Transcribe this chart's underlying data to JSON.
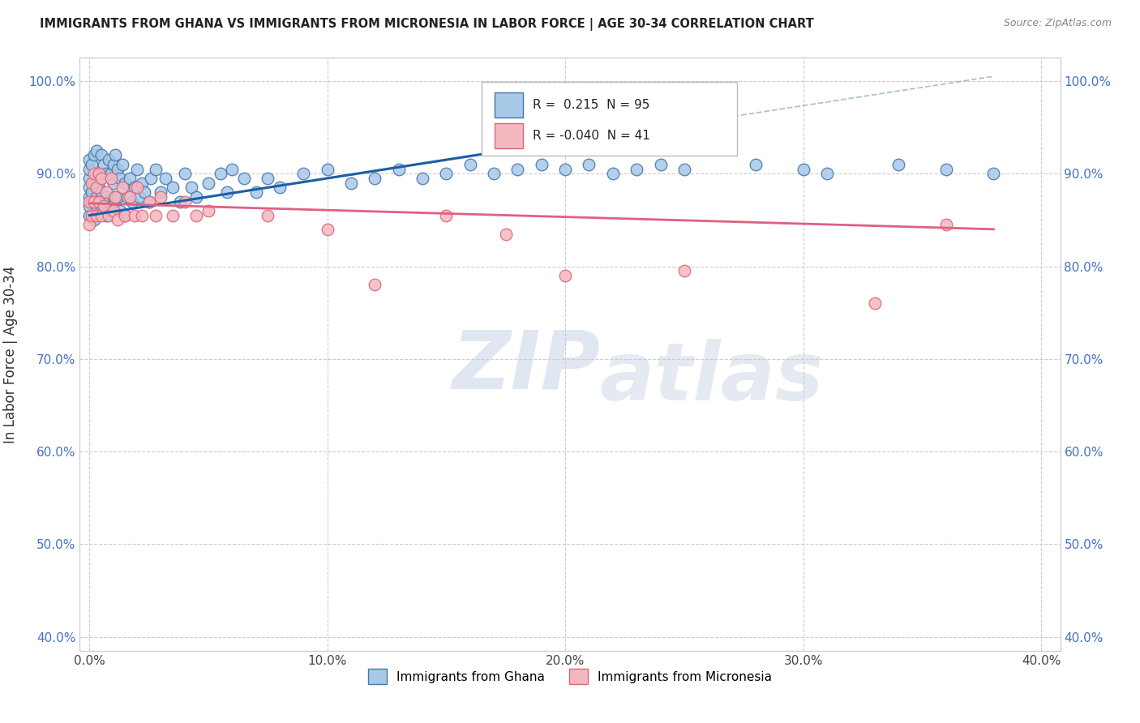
{
  "title": "IMMIGRANTS FROM GHANA VS IMMIGRANTS FROM MICRONESIA IN LABOR FORCE | AGE 30-34 CORRELATION CHART",
  "source": "Source: ZipAtlas.com",
  "ylabel": "In Labor Force | Age 30-34",
  "xlim": [
    -0.004,
    0.408
  ],
  "ylim": [
    0.385,
    1.025
  ],
  "ytick_labels": [
    "40.0%",
    "50.0%",
    "60.0%",
    "70.0%",
    "80.0%",
    "90.0%",
    "100.0%"
  ],
  "ytick_values": [
    0.4,
    0.5,
    0.6,
    0.7,
    0.8,
    0.9,
    1.0
  ],
  "xtick_labels": [
    "0.0%",
    "10.0%",
    "20.0%",
    "30.0%",
    "40.0%"
  ],
  "xtick_values": [
    0.0,
    0.1,
    0.2,
    0.3,
    0.4
  ],
  "ghana_color": "#a8c8e8",
  "micronesia_color": "#f4b8c0",
  "ghana_edge_color": "#4477aa",
  "micronesia_edge_color": "#dd6677",
  "ghana_R": 0.215,
  "ghana_N": 95,
  "micronesia_R": -0.04,
  "micronesia_N": 41,
  "ghana_line_color": "#1a5fa8",
  "micronesia_line_color": "#e06080",
  "ghana_x": [
    0.0,
    0.0,
    0.0,
    0.0,
    0.0,
    0.0,
    0.0,
    0.001,
    0.001,
    0.001,
    0.002,
    0.002,
    0.002,
    0.002,
    0.003,
    0.003,
    0.003,
    0.003,
    0.004,
    0.004,
    0.004,
    0.005,
    0.005,
    0.005,
    0.005,
    0.006,
    0.006,
    0.007,
    0.007,
    0.007,
    0.008,
    0.008,
    0.009,
    0.009,
    0.01,
    0.01,
    0.01,
    0.011,
    0.011,
    0.012,
    0.012,
    0.013,
    0.013,
    0.014,
    0.015,
    0.015,
    0.016,
    0.017,
    0.018,
    0.019,
    0.02,
    0.021,
    0.022,
    0.023,
    0.025,
    0.026,
    0.028,
    0.03,
    0.032,
    0.035,
    0.038,
    0.04,
    0.043,
    0.045,
    0.05,
    0.055,
    0.058,
    0.06,
    0.065,
    0.07,
    0.075,
    0.08,
    0.09,
    0.1,
    0.11,
    0.12,
    0.13,
    0.14,
    0.15,
    0.16,
    0.17,
    0.18,
    0.19,
    0.2,
    0.21,
    0.22,
    0.23,
    0.24,
    0.25,
    0.28,
    0.3,
    0.31,
    0.34,
    0.36,
    0.38
  ],
  "ghana_y": [
    0.855,
    0.865,
    0.875,
    0.885,
    0.895,
    0.905,
    0.915,
    0.87,
    0.88,
    0.91,
    0.85,
    0.87,
    0.89,
    0.92,
    0.86,
    0.875,
    0.895,
    0.925,
    0.87,
    0.885,
    0.9,
    0.86,
    0.88,
    0.895,
    0.92,
    0.865,
    0.91,
    0.855,
    0.875,
    0.9,
    0.87,
    0.915,
    0.86,
    0.9,
    0.875,
    0.89,
    0.91,
    0.87,
    0.92,
    0.875,
    0.905,
    0.86,
    0.895,
    0.91,
    0.855,
    0.89,
    0.875,
    0.895,
    0.87,
    0.885,
    0.905,
    0.875,
    0.89,
    0.88,
    0.87,
    0.895,
    0.905,
    0.88,
    0.895,
    0.885,
    0.87,
    0.9,
    0.885,
    0.875,
    0.89,
    0.9,
    0.88,
    0.905,
    0.895,
    0.88,
    0.895,
    0.885,
    0.9,
    0.905,
    0.89,
    0.895,
    0.905,
    0.895,
    0.9,
    0.91,
    0.9,
    0.905,
    0.91,
    0.905,
    0.91,
    0.9,
    0.905,
    0.91,
    0.905,
    0.91,
    0.905,
    0.9,
    0.91,
    0.905,
    0.9
  ],
  "micronesia_x": [
    0.0,
    0.0,
    0.001,
    0.001,
    0.002,
    0.002,
    0.003,
    0.003,
    0.004,
    0.004,
    0.005,
    0.005,
    0.006,
    0.007,
    0.008,
    0.009,
    0.01,
    0.011,
    0.012,
    0.014,
    0.015,
    0.017,
    0.019,
    0.02,
    0.022,
    0.025,
    0.028,
    0.03,
    0.035,
    0.04,
    0.045,
    0.05,
    0.075,
    0.1,
    0.12,
    0.15,
    0.175,
    0.2,
    0.25,
    0.33,
    0.36
  ],
  "micronesia_y": [
    0.845,
    0.87,
    0.855,
    0.89,
    0.87,
    0.9,
    0.855,
    0.885,
    0.87,
    0.9,
    0.855,
    0.895,
    0.865,
    0.88,
    0.855,
    0.895,
    0.86,
    0.875,
    0.85,
    0.885,
    0.855,
    0.875,
    0.855,
    0.885,
    0.855,
    0.87,
    0.855,
    0.875,
    0.855,
    0.87,
    0.855,
    0.86,
    0.855,
    0.84,
    0.78,
    0.855,
    0.835,
    0.79,
    0.795,
    0.76,
    0.845
  ]
}
